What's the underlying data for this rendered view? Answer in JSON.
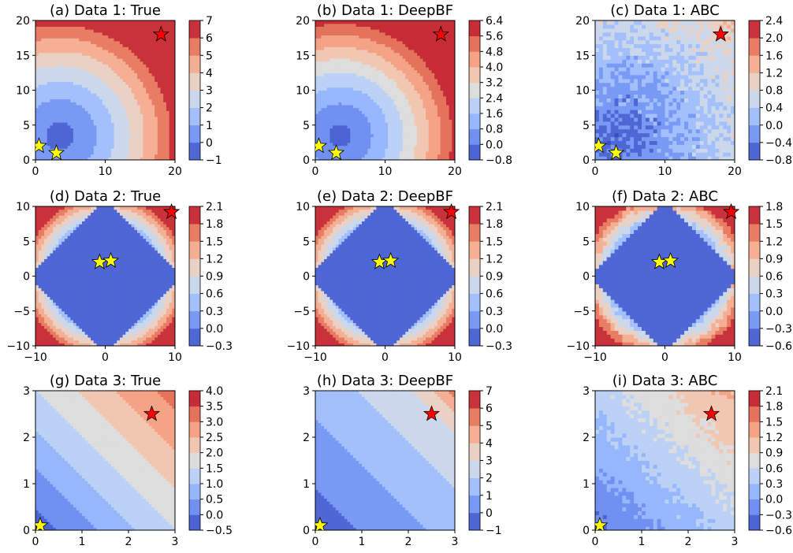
{
  "chart_data": [
    {
      "type": "heatmap",
      "title": "(a) Data 1: True",
      "xlim": [
        0,
        20
      ],
      "ylim": [
        0,
        20
      ],
      "xticks": [
        "0",
        "10",
        "20"
      ],
      "yticks": [
        "0",
        "5",
        "10",
        "15",
        "20"
      ],
      "colorbar_ticks": [
        "−1",
        "0",
        "1",
        "2",
        "3",
        "4",
        "5",
        "6",
        "7"
      ],
      "colorbar_range": [
        -1,
        7
      ],
      "field": {
        "kind": "bowl",
        "cx": 3.5,
        "cy": 3.5,
        "ax": 18,
        "ay": 18
      },
      "red_star": {
        "x": 18,
        "y": 18
      },
      "yellow_stars": [
        {
          "x": 0.5,
          "y": 2
        },
        {
          "x": 3,
          "y": 1
        }
      ]
    },
    {
      "type": "heatmap",
      "title": "(b) Data 1: DeepBF",
      "xlim": [
        0,
        20
      ],
      "ylim": [
        0,
        20
      ],
      "xticks": [
        "0",
        "10",
        "20"
      ],
      "yticks": [
        "0",
        "5",
        "10",
        "15",
        "20"
      ],
      "colorbar_ticks": [
        "−0.8",
        "0.0",
        "0.8",
        "1.6",
        "2.4",
        "3.2",
        "4.0",
        "4.8",
        "5.6",
        "6.4"
      ],
      "colorbar_range": [
        -0.8,
        6.4
      ],
      "field": {
        "kind": "bowl",
        "cx": 3.5,
        "cy": 3.5,
        "ax": 18,
        "ay": 18
      },
      "red_star": {
        "x": 18,
        "y": 18
      },
      "yellow_stars": [
        {
          "x": 0.5,
          "y": 2
        },
        {
          "x": 3,
          "y": 1
        }
      ]
    },
    {
      "type": "heatmap",
      "title": "(c) Data 1: ABC",
      "xlim": [
        0,
        20
      ],
      "ylim": [
        0,
        20
      ],
      "xticks": [
        "0",
        "10",
        "20"
      ],
      "yticks": [
        "0",
        "5",
        "10",
        "15",
        "20"
      ],
      "colorbar_ticks": [
        "−0.8",
        "−0.4",
        "0.0",
        "0.4",
        "0.8",
        "1.2",
        "1.6",
        "2.0",
        "2.4"
      ],
      "colorbar_range": [
        -0.8,
        2.4
      ],
      "field": {
        "kind": "noisy",
        "cx": 3,
        "cy": 3
      },
      "red_star": {
        "x": 18,
        "y": 18
      },
      "yellow_stars": [
        {
          "x": 0.5,
          "y": 2
        },
        {
          "x": 3,
          "y": 1
        }
      ]
    },
    {
      "type": "heatmap",
      "title": "(d) Data 2: True",
      "xlim": [
        -10,
        10
      ],
      "ylim": [
        -10,
        10
      ],
      "xticks": [
        "−10",
        "0",
        "10"
      ],
      "yticks": [
        "−10",
        "−5",
        "0",
        "5",
        "10"
      ],
      "colorbar_ticks": [
        "−0.3",
        "0.0",
        "0.3",
        "0.6",
        "0.9",
        "1.2",
        "1.5",
        "1.8",
        "2.1"
      ],
      "colorbar_range": [
        -0.3,
        2.1
      ],
      "field": {
        "kind": "diamond"
      },
      "red_star": {
        "x": 9.5,
        "y": 9.2
      },
      "yellow_stars": [
        {
          "x": -0.8,
          "y": 2
        },
        {
          "x": 0.8,
          "y": 2.2
        }
      ]
    },
    {
      "type": "heatmap",
      "title": "(e) Data 2: DeepBF",
      "xlim": [
        -10,
        10
      ],
      "ylim": [
        -10,
        10
      ],
      "xticks": [
        "−10",
        "0",
        "10"
      ],
      "yticks": [
        "−10",
        "−5",
        "0",
        "5",
        "10"
      ],
      "colorbar_ticks": [
        "−0.3",
        "0.0",
        "0.3",
        "0.6",
        "0.9",
        "1.2",
        "1.5",
        "1.8",
        "2.1"
      ],
      "colorbar_range": [
        -0.3,
        2.1
      ],
      "field": {
        "kind": "diamond"
      },
      "red_star": {
        "x": 9.5,
        "y": 9.2
      },
      "yellow_stars": [
        {
          "x": -0.8,
          "y": 2
        },
        {
          "x": 0.8,
          "y": 2.2
        }
      ]
    },
    {
      "type": "heatmap",
      "title": "(f) Data 2: ABC",
      "xlim": [
        -10,
        10
      ],
      "ylim": [
        -10,
        10
      ],
      "xticks": [
        "−10",
        "0",
        "10"
      ],
      "yticks": [
        "−10",
        "−5",
        "0",
        "5",
        "10"
      ],
      "colorbar_ticks": [
        "−0.6",
        "−0.3",
        "0.0",
        "0.3",
        "0.6",
        "0.9",
        "1.2",
        "1.5",
        "1.8"
      ],
      "colorbar_range": [
        -0.6,
        1.8
      ],
      "field": {
        "kind": "diamond_noisy"
      },
      "red_star": {
        "x": 9.5,
        "y": 9.2
      },
      "yellow_stars": [
        {
          "x": -0.8,
          "y": 2
        },
        {
          "x": 0.8,
          "y": 2.2
        }
      ]
    },
    {
      "type": "heatmap",
      "title": "(g) Data 3: True",
      "xlim": [
        0,
        3
      ],
      "ylim": [
        0,
        3
      ],
      "xticks": [
        "0",
        "1",
        "2",
        "3"
      ],
      "yticks": [
        "0",
        "1",
        "2",
        "3"
      ],
      "colorbar_ticks": [
        "−0.5",
        "0.0",
        "0.5",
        "1.0",
        "1.5",
        "2.0",
        "2.5",
        "3.0",
        "3.5",
        "4.0"
      ],
      "colorbar_range": [
        -0.5,
        4.0
      ],
      "field": {
        "kind": "diagonal",
        "scale": 0.78,
        "offset": 0.05
      },
      "red_star": {
        "x": 2.5,
        "y": 2.5
      },
      "yellow_stars": [
        {
          "x": 0.1,
          "y": 0.1
        }
      ]
    },
    {
      "type": "heatmap",
      "title": "(h) Data 3: DeepBF",
      "xlim": [
        0,
        3
      ],
      "ylim": [
        0,
        3
      ],
      "xticks": [
        "0",
        "1",
        "2",
        "3"
      ],
      "yticks": [
        "0",
        "1",
        "2",
        "3"
      ],
      "colorbar_ticks": [
        "−1",
        "0",
        "1",
        "2",
        "3",
        "4",
        "5",
        "6",
        "7"
      ],
      "colorbar_range": [
        -1,
        7
      ],
      "field": {
        "kind": "diagonal_sharp"
      },
      "red_star": {
        "x": 2.5,
        "y": 2.5
      },
      "yellow_stars": [
        {
          "x": 0.1,
          "y": 0.1
        }
      ]
    },
    {
      "type": "heatmap",
      "title": "(i) Data 3: ABC",
      "xlim": [
        0,
        3
      ],
      "ylim": [
        0,
        3
      ],
      "xticks": [
        "0",
        "1",
        "2",
        "3"
      ],
      "yticks": [
        "0",
        "1",
        "2",
        "3"
      ],
      "colorbar_ticks": [
        "−0.6",
        "−0.3",
        "0.0",
        "0.3",
        "0.6",
        "0.9",
        "1.2",
        "1.5",
        "1.8",
        "2.1"
      ],
      "colorbar_range": [
        -0.6,
        2.1
      ],
      "field": {
        "kind": "diagonal_noisy"
      },
      "red_star": {
        "x": 2.5,
        "y": 2.5
      },
      "yellow_stars": [
        {
          "x": 0.1,
          "y": 0.1
        }
      ]
    }
  ],
  "colors": {
    "colormap": "coolwarm",
    "red_star": "#ff0000",
    "yellow_star": "#ffff00",
    "star_edge": "#000000"
  }
}
